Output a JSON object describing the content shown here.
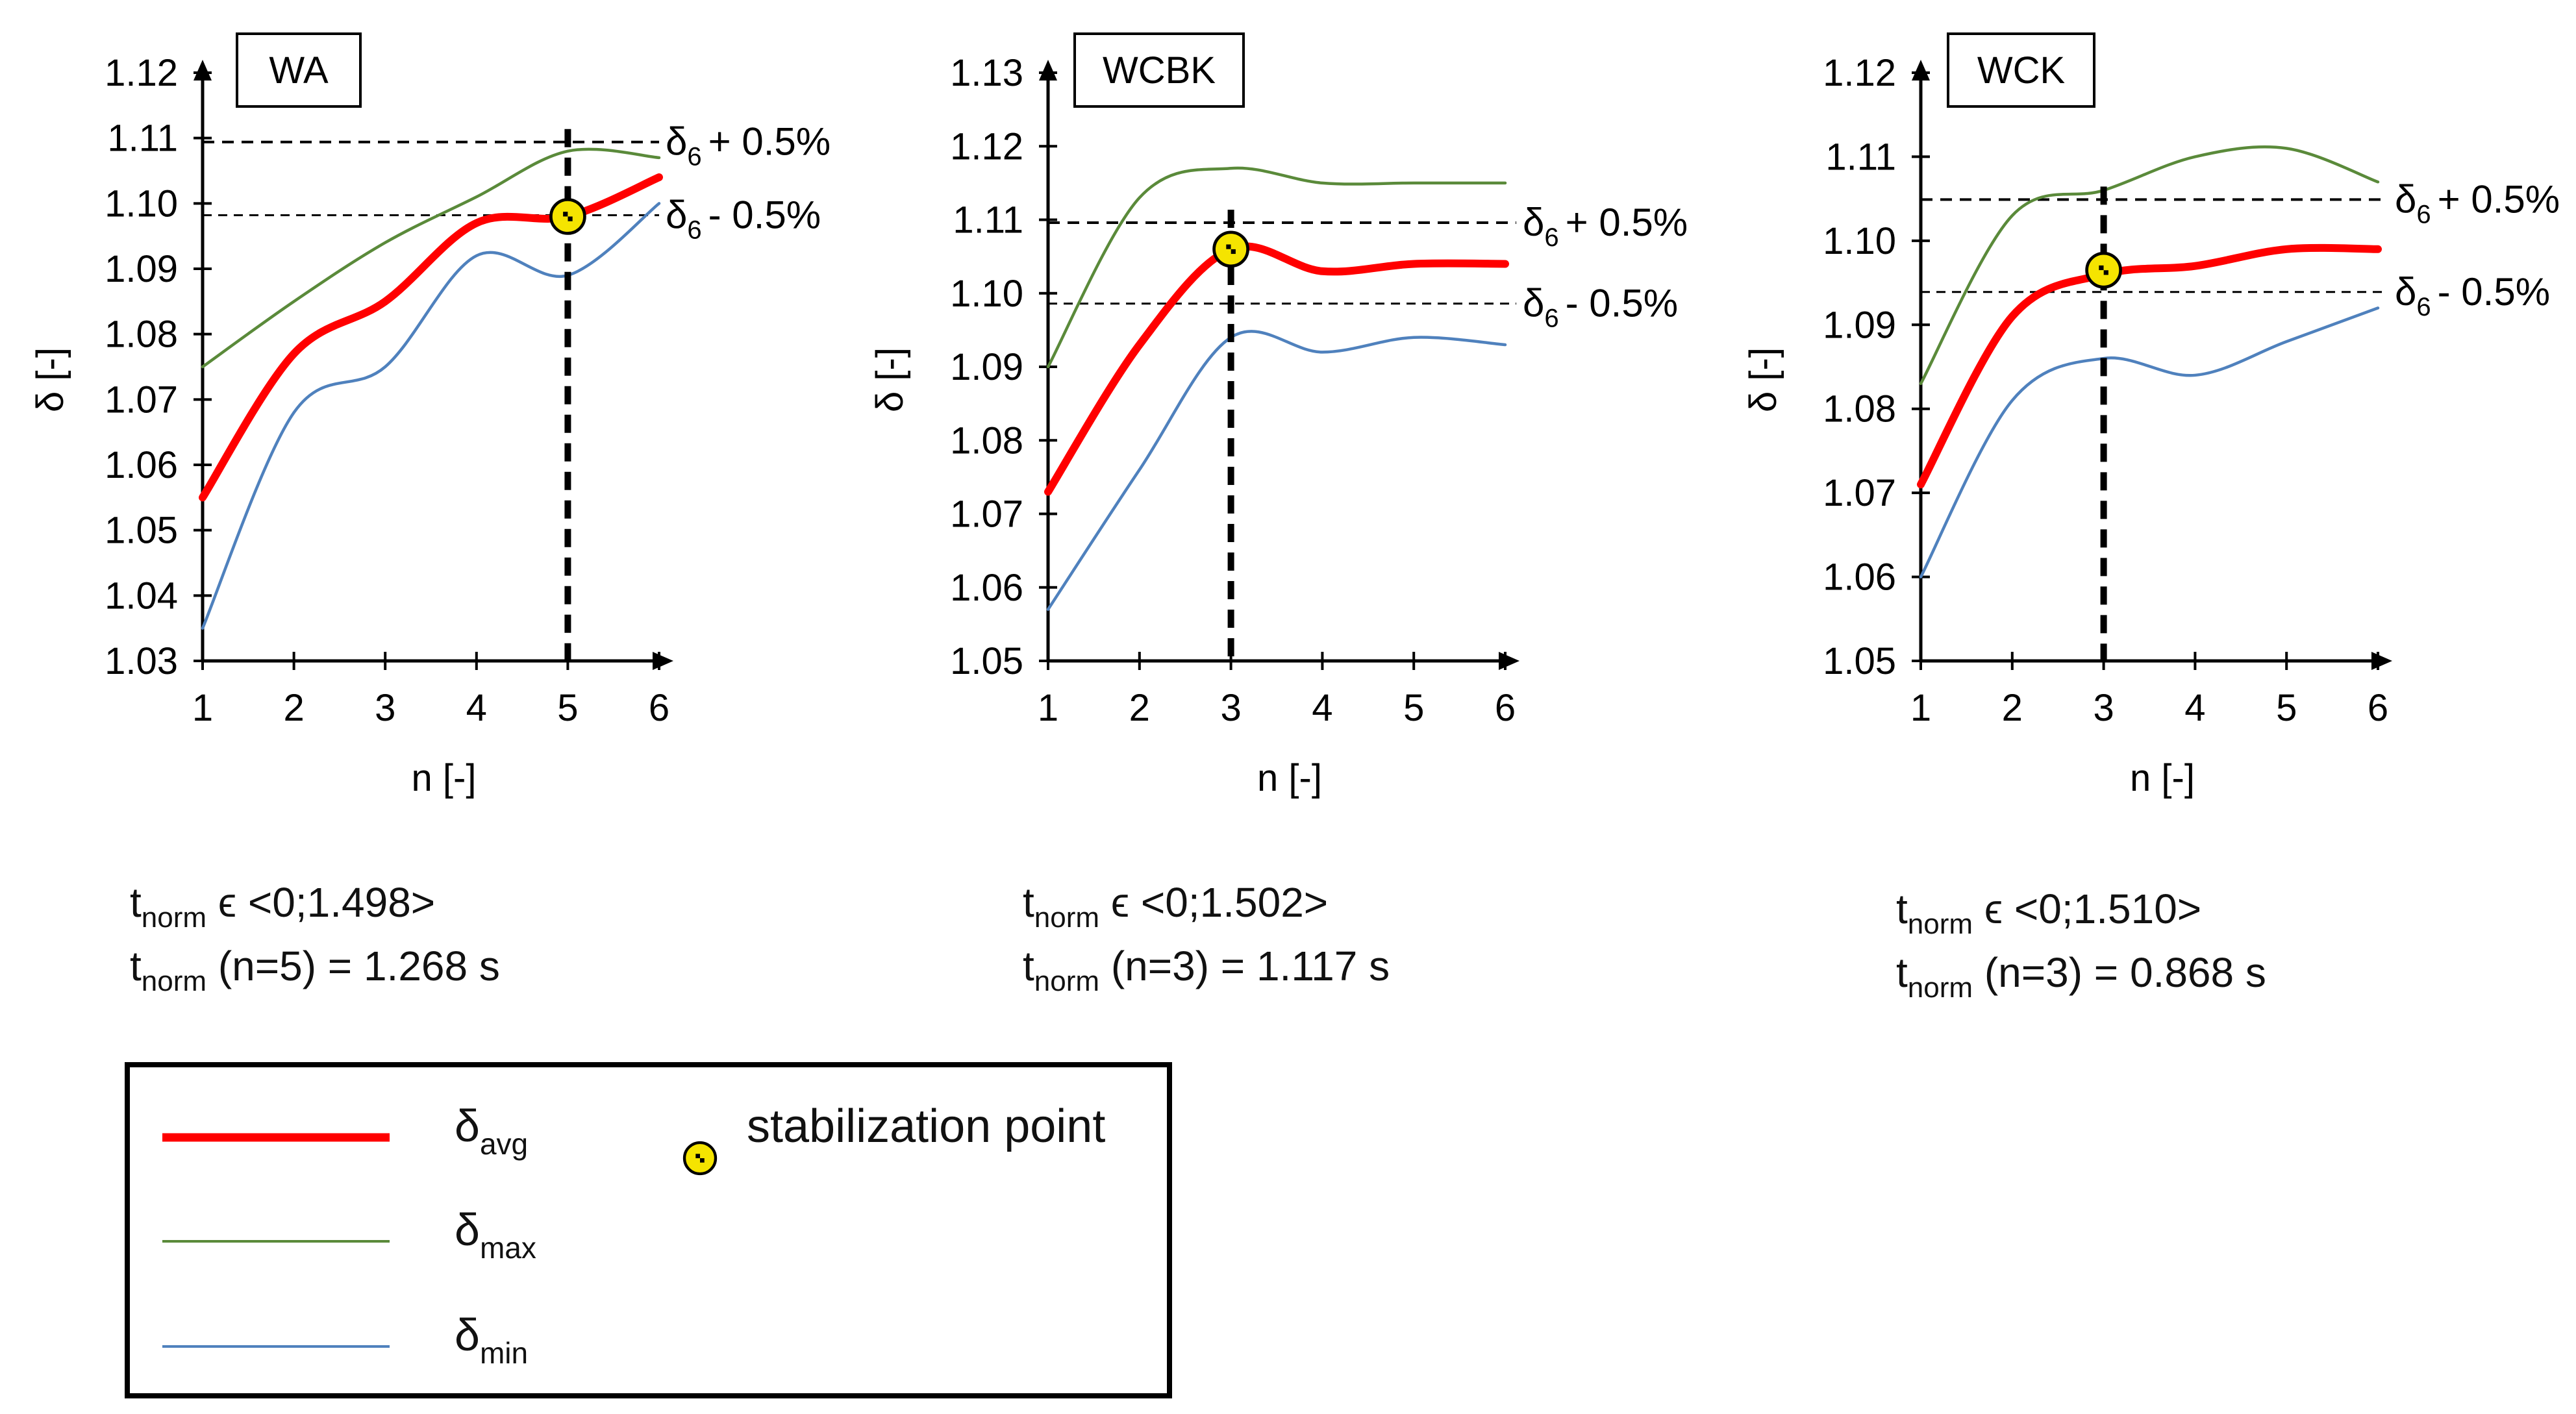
{
  "charts": [
    {
      "title": "WA",
      "ylabel": "δ [-]",
      "xlabel": "n [-]",
      "yticks": [
        "1.03",
        "1.04",
        "1.05",
        "1.06",
        "1.07",
        "1.08",
        "1.09",
        "1.10",
        "1.11",
        "1.12"
      ],
      "xticks": [
        "1",
        "2",
        "3",
        "4",
        "5",
        "6"
      ],
      "band_upper_label": "+ 0.5%",
      "band_lower_label": "- 0.5%",
      "band_symbol": "δ",
      "band_sub": "6",
      "tnorm_range": "ϵ <0;1.498>",
      "tnorm_value": "(n=5) = 1.268 s"
    },
    {
      "title": "WCBK",
      "ylabel": "δ [-]",
      "xlabel": "n [-]",
      "yticks": [
        "1.05",
        "1.06",
        "1.07",
        "1.08",
        "1.09",
        "1.10",
        "1.11",
        "1.12",
        "1.13"
      ],
      "xticks": [
        "1",
        "2",
        "3",
        "4",
        "5",
        "6"
      ],
      "band_upper_label": "+ 0.5%",
      "band_lower_label": "- 0.5%",
      "band_symbol": "δ",
      "band_sub": "6",
      "tnorm_range": "ϵ <0;1.502>",
      "tnorm_value": "(n=3) = 1.117 s"
    },
    {
      "title": "WCK",
      "ylabel": "δ [-]",
      "xlabel": "n [-]",
      "yticks": [
        "1.05",
        "1.06",
        "1.07",
        "1.08",
        "1.09",
        "1.10",
        "1.11",
        "1.12"
      ],
      "xticks": [
        "1",
        "2",
        "3",
        "4",
        "5",
        "6"
      ],
      "band_upper_label": "+ 0.5%",
      "band_lower_label": "- 0.5%",
      "band_symbol": "δ",
      "band_sub": "6",
      "tnorm_range": "ϵ <0;1.510>",
      "tnorm_value": "(n=3) = 0.868 s"
    }
  ],
  "tnorm_symbol": "t",
  "tnorm_sub": "norm",
  "legend": {
    "avg_symbol": "δ",
    "avg_sub": "avg",
    "max_symbol": "δ",
    "max_sub": "max",
    "min_symbol": "δ",
    "min_sub": "min",
    "stab_label": "stabilization point"
  },
  "colors": {
    "avg": "#ff0000",
    "max": "#5a8a3a",
    "min": "#4f81bd",
    "axis": "#000000",
    "marker_fill": "#f5e400"
  },
  "chart_data": [
    {
      "type": "line",
      "title": "WA",
      "xlabel": "n [-]",
      "ylabel": "δ [-]",
      "xlim": [
        1,
        6
      ],
      "ylim": [
        1.03,
        1.12
      ],
      "x": [
        1,
        2,
        3,
        4,
        5,
        6
      ],
      "series": [
        {
          "name": "δavg",
          "values": [
            1.055,
            1.077,
            1.085,
            1.097,
            1.098,
            1.104
          ]
        },
        {
          "name": "δmax",
          "values": [
            1.075,
            1.085,
            1.094,
            1.101,
            1.108,
            1.107
          ]
        },
        {
          "name": "δmin",
          "values": [
            1.035,
            1.068,
            1.075,
            1.092,
            1.089,
            1.1
          ]
        }
      ],
      "band_upper": 1.1094,
      "band_lower": 1.0982,
      "stabilization_point": {
        "n": 5,
        "value": 1.098
      }
    },
    {
      "type": "line",
      "title": "WCBK",
      "xlabel": "n [-]",
      "ylabel": "δ [-]",
      "xlim": [
        1,
        6
      ],
      "ylim": [
        1.05,
        1.13
      ],
      "x": [
        1,
        2,
        3,
        4,
        5,
        6
      ],
      "series": [
        {
          "name": "δavg",
          "values": [
            1.073,
            1.093,
            1.106,
            1.103,
            1.104,
            1.104
          ]
        },
        {
          "name": "δmax",
          "values": [
            1.09,
            1.113,
            1.117,
            1.115,
            1.115,
            1.115
          ]
        },
        {
          "name": "δmin",
          "values": [
            1.057,
            1.076,
            1.094,
            1.092,
            1.094,
            1.093
          ]
        }
      ],
      "band_upper": 1.1096,
      "band_lower": 1.0986,
      "stabilization_point": {
        "n": 3,
        "value": 1.106
      }
    },
    {
      "type": "line",
      "title": "WCK",
      "xlabel": "n [-]",
      "ylabel": "δ [-]",
      "xlim": [
        1,
        6
      ],
      "ylim": [
        1.05,
        1.12
      ],
      "x": [
        1,
        2,
        3,
        4,
        5,
        6
      ],
      "series": [
        {
          "name": "δavg",
          "values": [
            1.071,
            1.091,
            1.096,
            1.097,
            1.099,
            1.099
          ]
        },
        {
          "name": "δmax",
          "values": [
            1.083,
            1.103,
            1.106,
            1.11,
            1.111,
            1.107
          ]
        },
        {
          "name": "δmin",
          "values": [
            1.06,
            1.081,
            1.086,
            1.084,
            1.088,
            1.092
          ]
        }
      ],
      "band_upper": 1.1049,
      "band_lower": 1.0939,
      "stabilization_point": {
        "n": 3,
        "value": 1.0965
      }
    }
  ]
}
